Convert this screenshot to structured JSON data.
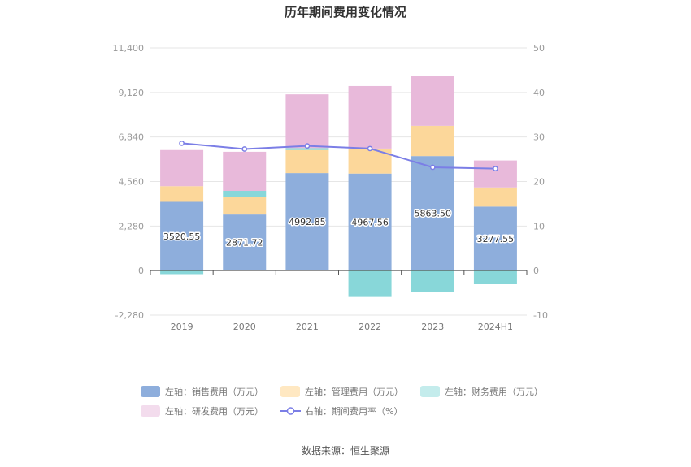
{
  "chart_data": {
    "type": "bar",
    "title": "历年期间费用变化情况",
    "categories": [
      "2019",
      "2020",
      "2021",
      "2022",
      "2023",
      "2024H1"
    ],
    "left_axis": {
      "ticks": [
        "11,400",
        "9,120",
        "6,840",
        "4,560",
        "2,280",
        "0",
        "-2,280"
      ],
      "ylim": [
        -2280,
        11400
      ]
    },
    "right_axis": {
      "ticks": [
        "50",
        "40",
        "30",
        "20",
        "10",
        "0",
        "-10"
      ],
      "ylim": [
        -10,
        50
      ]
    },
    "series": [
      {
        "name": "左轴：销售费用（万元）",
        "axis": "left",
        "stack": "cost",
        "color": "#8eaedc",
        "values": [
          3520.55,
          2871.72,
          4992.85,
          4967.56,
          5863.5,
          3277.55
        ],
        "labels": [
          "3520.55",
          "2871.72",
          "4992.85",
          "4967.56",
          "5863.50",
          "3277.55"
        ]
      },
      {
        "name": "左轴：管理费用（万元）",
        "axis": "left",
        "stack": "cost",
        "color": "#fcd79a",
        "values": [
          800,
          880,
          1180,
          1280,
          1550,
          980
        ]
      },
      {
        "name": "左轴：财务费用（万元）",
        "axis": "left",
        "stack": "cost",
        "color": "#88d7d9",
        "values": [
          -180,
          330,
          100,
          -1350,
          -1100,
          -700
        ]
      },
      {
        "name": "左轴：研发费用（万元）",
        "axis": "left",
        "stack": "cost",
        "color": "#e8b9da",
        "values": [
          1850,
          2000,
          2750,
          3200,
          2550,
          1380
        ]
      },
      {
        "name": "右轴：期间费用率（%）",
        "axis": "right",
        "type": "line",
        "color": "#7b7ee6",
        "values": [
          28.6,
          27.3,
          28.0,
          27.4,
          23.2,
          22.9
        ]
      }
    ],
    "legend_position": "bottom",
    "grid": true
  },
  "source_text": "数据来源：恒生聚源"
}
